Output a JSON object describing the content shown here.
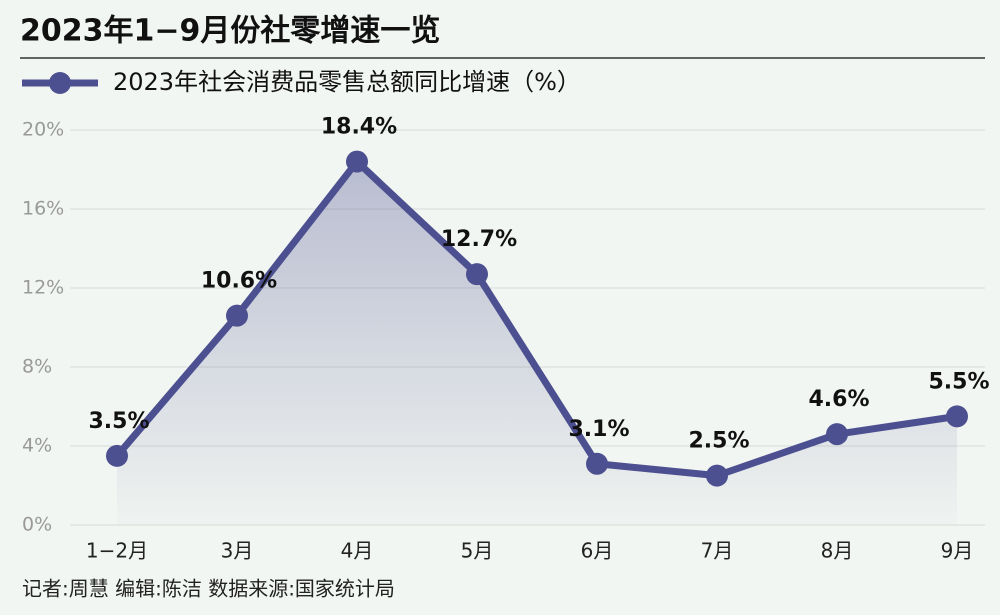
{
  "chart_data": {
    "type": "line",
    "title": "2023年1−9月份社零增速一览",
    "categories": [
      "1−2月",
      "3月",
      "4月",
      "5月",
      "6月",
      "7月",
      "8月",
      "9月"
    ],
    "series": [
      {
        "name": "2023年社会消费品零售总额同比增速（%）",
        "color": "#4c5090",
        "values": [
          3.5,
          10.6,
          18.4,
          12.7,
          3.1,
          2.5,
          4.6,
          5.5
        ],
        "value_labels": [
          "3.5%",
          "10.6%",
          "18.4%",
          "12.7%",
          "3.1%",
          "2.5%",
          "4.6%",
          "5.5%"
        ]
      }
    ],
    "ylim": [
      0,
      20
    ],
    "yticks": [
      {
        "value": 0,
        "label": "0%"
      },
      {
        "value": 4,
        "label": "4%"
      },
      {
        "value": 8,
        "label": "8%"
      },
      {
        "value": 12,
        "label": "12%"
      },
      {
        "value": 16,
        "label": "16%"
      },
      {
        "value": 20,
        "label": "20%"
      }
    ],
    "grid": true,
    "source": "记者:周慧  编辑:陈洁  数据来源:国家统计局"
  }
}
